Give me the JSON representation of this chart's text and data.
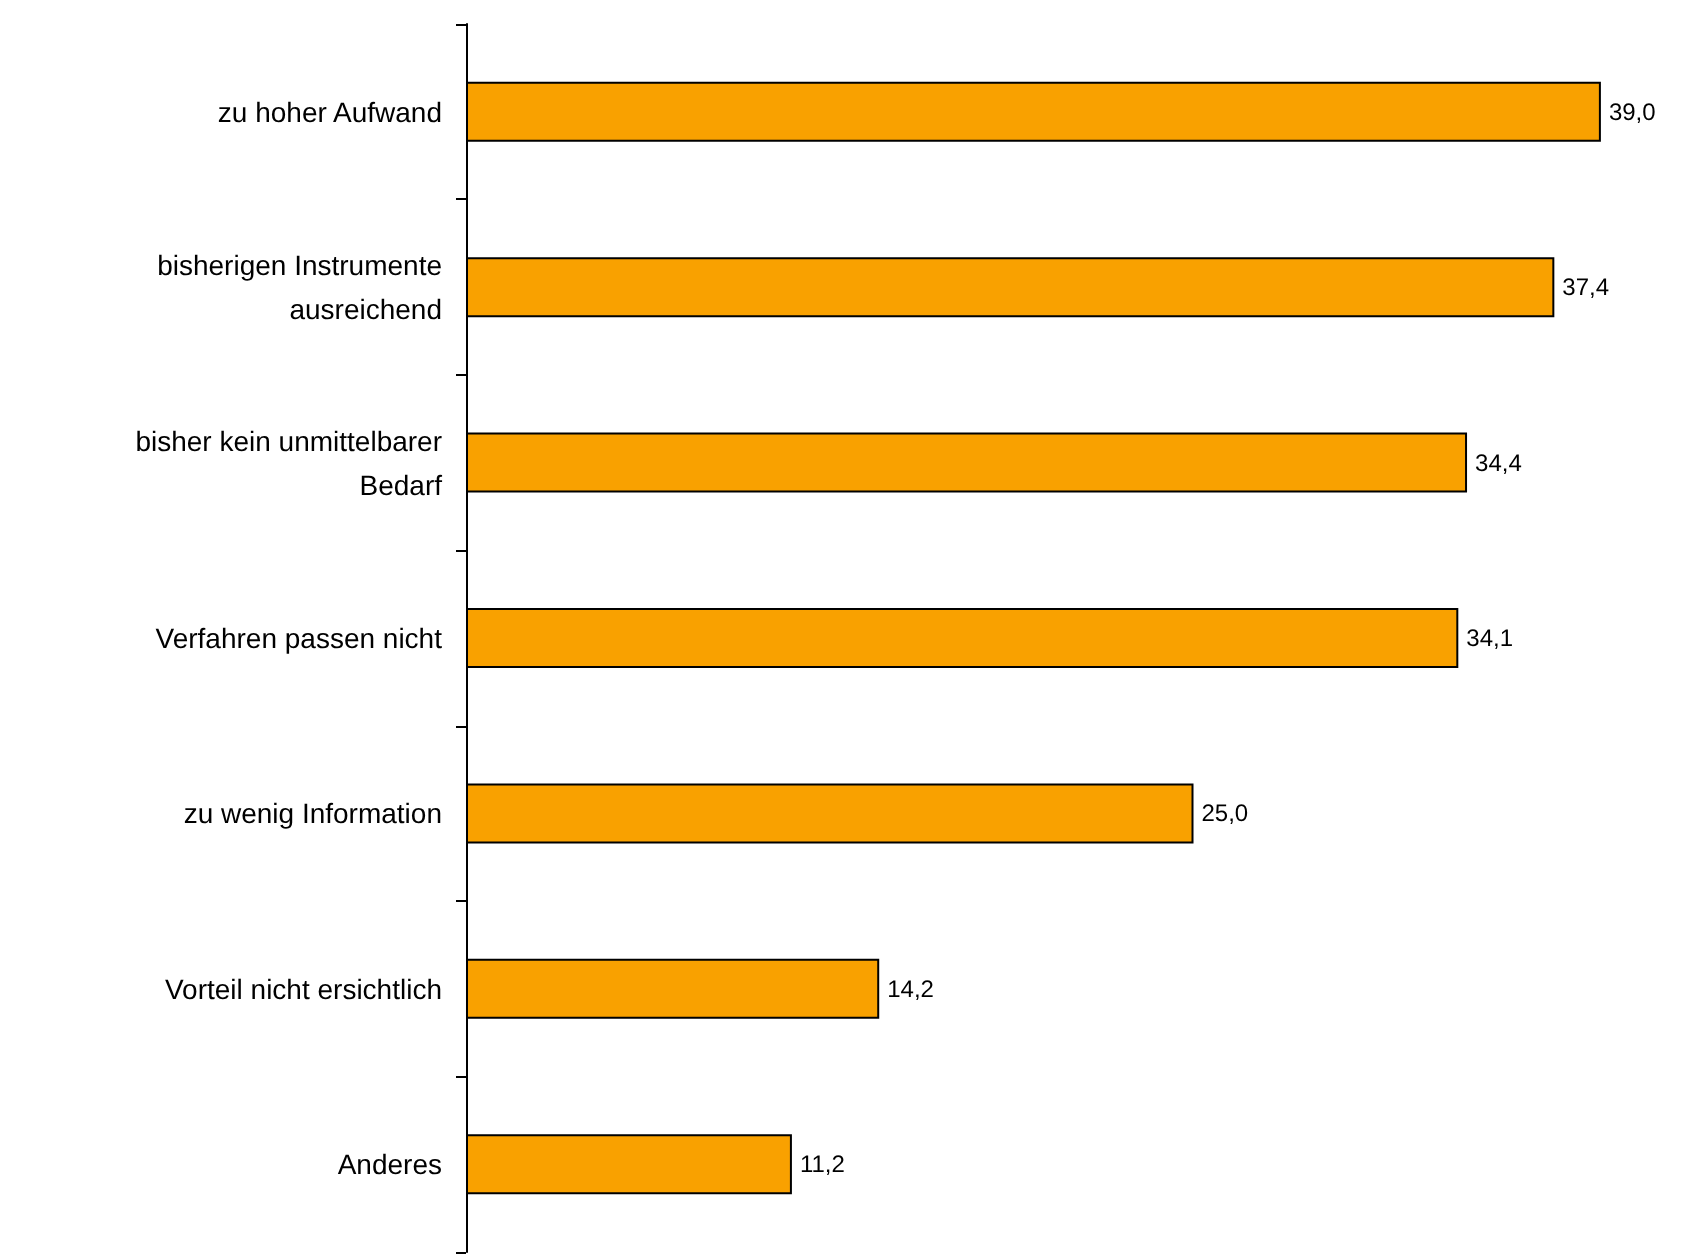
{
  "chart_data": {
    "type": "bar",
    "orientation": "horizontal",
    "categories": [
      "zu hoher Aufwand",
      "bisherigen Instrumente\nausreichend",
      "bisher kein unmittelbarer\nBedarf",
      "Verfahren passen nicht",
      "zu wenig Information",
      "Vorteil nicht ersichtlich",
      "Anderes"
    ],
    "values": [
      39.0,
      37.4,
      34.4,
      34.1,
      25.0,
      14.2,
      11.2
    ],
    "value_labels": [
      "39,0",
      "37,4",
      "34,4",
      "34,1",
      "25,0",
      "14,2",
      "11,2"
    ],
    "color": "#f9a100"
  }
}
